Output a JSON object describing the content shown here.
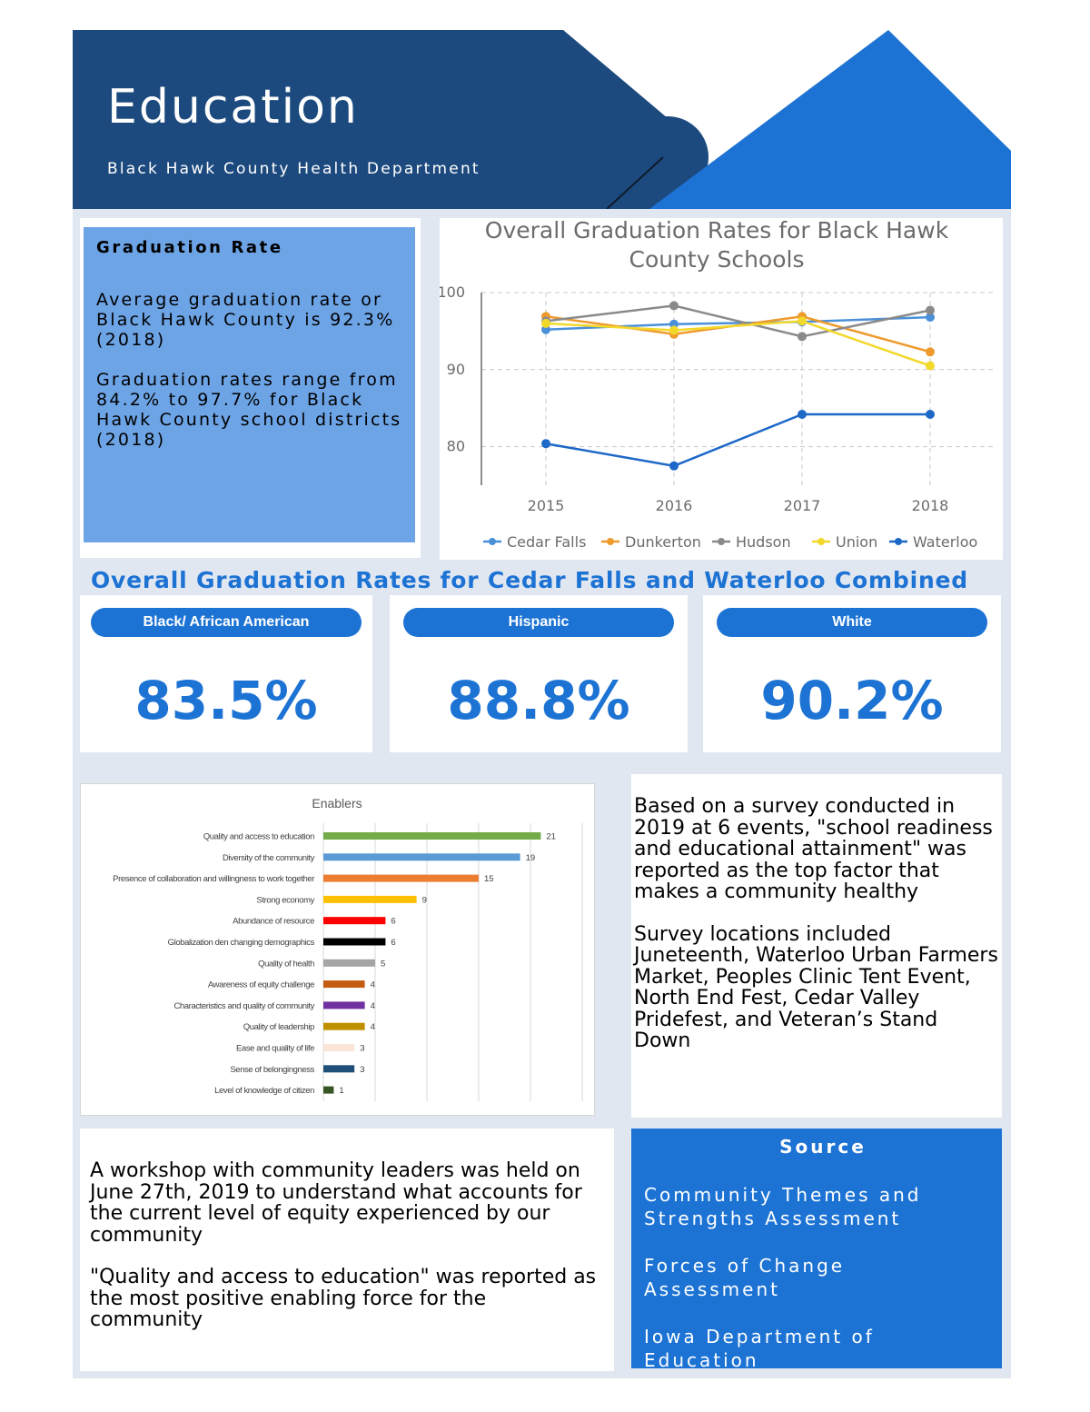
{
  "header": {
    "title": "Education",
    "subtitle": "Black Hawk County Health Department",
    "colors": {
      "dark_navy": "#1d4a7e",
      "bright_blue": "#1d73d4"
    }
  },
  "graduation_rate": {
    "title": "Graduation Rate",
    "paragraph_1": "Average graduation rate or Black Hawk County is 92.3% (2018)",
    "paragraph_2": "Graduation rates range from 84.2% to 97.7% for Black Hawk County school districts (2018)"
  },
  "combined_section": {
    "heading": "Overall Graduation Rates for Cedar Falls and Waterloo Combined",
    "cards": [
      {
        "label": "Black/ African American",
        "value": "83.5%"
      },
      {
        "label": "Hispanic",
        "value": "88.8%"
      },
      {
        "label": "White",
        "value": "90.2%"
      }
    ]
  },
  "survey": {
    "paragraph_1": "Based on a survey conducted in 2019 at 6 events, \"school readiness and educational attainment\" was reported as the top factor that makes a community healthy",
    "paragraph_2": "Survey locations included Juneteenth, Waterloo Urban Farmers Market, Peoples Clinic Tent Event, North End Fest, Cedar Valley Pridefest, and Veteran’s Stand Down"
  },
  "workshop": {
    "paragraph_1": "A workshop with community leaders was held on June 27th, 2019 to understand what accounts for the current level of equity experienced by our community",
    "paragraph_2": "\"Quality and access to education\" was reported as the most positive enabling force for the community"
  },
  "source": {
    "title": "Source",
    "items": [
      "Community Themes and Strengths Assessment",
      "Forces of Change Assessment",
      "Iowa Department of Education"
    ]
  },
  "chart_data": [
    {
      "type": "line",
      "title": "Overall Graduation Rates for Black Hawk County Schools",
      "x": [
        "2015",
        "2016",
        "2017",
        "2018"
      ],
      "ylim": [
        75,
        100
      ],
      "yticks": [
        80,
        90,
        100
      ],
      "grid": true,
      "legend_position": "bottom",
      "series": [
        {
          "name": "Cedar Falls",
          "color": "#4a90d9",
          "values": [
            95.2,
            95.9,
            96.2,
            96.8
          ]
        },
        {
          "name": "Dunkerton",
          "color": "#ee9a2d",
          "values": [
            96.9,
            94.6,
            96.9,
            92.3
          ]
        },
        {
          "name": "Hudson",
          "color": "#8a8a8a",
          "values": [
            96.3,
            98.3,
            94.3,
            97.7
          ]
        },
        {
          "name": "Union",
          "color": "#f3d82c",
          "values": [
            96.0,
            95.1,
            96.3,
            90.5
          ]
        },
        {
          "name": "Waterloo",
          "color": "#1e68c8",
          "values": [
            80.4,
            77.5,
            84.2,
            84.2
          ]
        }
      ]
    },
    {
      "type": "bar",
      "orientation": "horizontal",
      "title": "Enablers",
      "xlim": [
        0,
        25
      ],
      "grid": true,
      "categories": [
        "Quality and access to education",
        "Diversity of the community",
        "Presence of collaboration and willingness to work together",
        "Strong economy",
        "Abundance of resource",
        "Globalization den changing demographics",
        "Quality of health",
        "Awareness of equity challenge",
        "Characteristics and quality of community",
        "Quality of leadership",
        "Ease and quality of life",
        "Sense of belongingness",
        "Level of knowledge of citizen"
      ],
      "values": [
        21,
        19,
        15,
        9,
        6,
        6,
        5,
        4,
        4,
        4,
        3,
        3,
        1
      ],
      "colors": [
        "#72ab48",
        "#5b9bd5",
        "#ed7d31",
        "#ffc000",
        "#ff0000",
        "#000000",
        "#a5a5a5",
        "#c55a11",
        "#7030a0",
        "#bf9000",
        "#fbe5d6",
        "#1f4e79",
        "#375623"
      ]
    }
  ]
}
